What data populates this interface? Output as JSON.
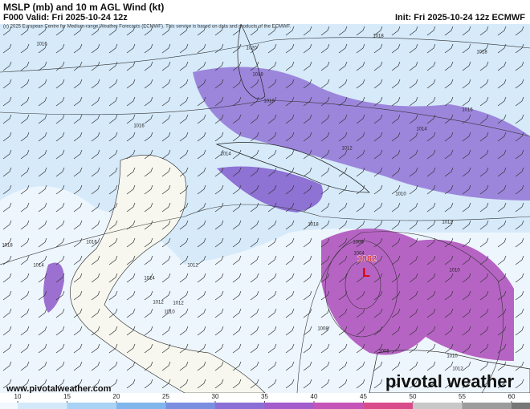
{
  "header": {
    "title": "MSLP (mb) and 10 m AGL Wind (kt)",
    "valid": "F000 Valid: Fri 2025-10-24 12z",
    "init": "Init: Fri 2025-10-24 12z ECMWF"
  },
  "map": {
    "copyright": "(c) 2025 European Centre for Medium-range Weather Forecasts (ECMWF). This service is based on data and products of the ECMWF.",
    "isobar_labels": [
      1016,
      1018,
      1020,
      1018,
      1018,
      1016,
      1018,
      1016,
      1014,
      1012,
      1014,
      1010,
      1012,
      1018,
      1016,
      1018,
      1014,
      1012,
      1014,
      1012,
      1012,
      1010,
      1006,
      1004,
      1010,
      1008,
      1008,
      1010,
      1012
    ],
    "low_center": {
      "pressure": 1002,
      "symbol": "L"
    },
    "website": "www.pivotalweather.com",
    "logo": "pivotal weather"
  },
  "colorbar": {
    "ticks": [
      10,
      15,
      20,
      25,
      30,
      35,
      40,
      45,
      50,
      55,
      60
    ],
    "colors": [
      "#f2f8fd",
      "#d3e9fa",
      "#a9d2f4",
      "#80b6ec",
      "#7a8fe0",
      "#8c6fd6",
      "#a35ccc",
      "#c554b8",
      "#d94c8c",
      "#c8c8c8",
      "#9c9c9c",
      "#777777"
    ]
  }
}
